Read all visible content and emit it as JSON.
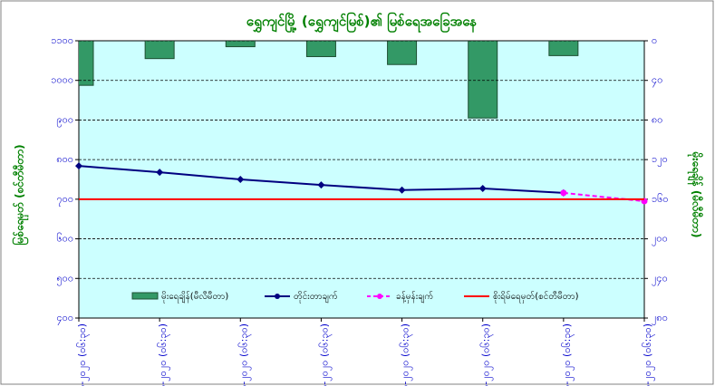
{
  "chart_data": {
    "type": "combo",
    "title": "ရွှေကျင်မြို့ (ရွှေကျင်မြစ်)၏ မြစ်ရေအခြေအနေ",
    "y_label": "မြစ်ရေမှတ် (စင်တီမီတာ)",
    "y2_label": "မိုးရေချိန် (မီလီမီတာ)",
    "categories": [
      "၂၄-၇-၂၀၂၀ (၀၆:၃၀)",
      "၂၅-၇-၂၀၂၀ (၀၆:၃၀)",
      "၂၆-၇-၂၀၂၀ (၀၆:၃၀)",
      "၂၇-၇-၂၀၂၀ (၀၆:၃၀)",
      "၂၈-၇-၂၀၂၀ (၀၆:၃၀)",
      "၂၉-၇-၂၀၂၀ (၀၆:၃၀)",
      "၃၀-၇-၂၀၂၀ (၀၆:၃၀)",
      "၃၁-၇-၂၀၂၀ (၀၆:၃၀)"
    ],
    "ylim": [
      400,
      1100
    ],
    "yticks": [
      {
        "value": 400,
        "label": "၄၀၀"
      },
      {
        "value": 500,
        "label": "၅၀၀"
      },
      {
        "value": 600,
        "label": "၆၀၀"
      },
      {
        "value": 700,
        "label": "၇၀၀"
      },
      {
        "value": 800,
        "label": "၈၀၀"
      },
      {
        "value": 900,
        "label": "၉၀၀"
      },
      {
        "value": 1000,
        "label": "၁၀၀၀"
      },
      {
        "value": 1100,
        "label": "၁၁၀၀"
      }
    ],
    "y2lim": [
      0,
      280
    ],
    "y2_inverted": true,
    "y2ticks": [
      {
        "value": 0,
        "label": "၀"
      },
      {
        "value": 40,
        "label": "၄၀"
      },
      {
        "value": 80,
        "label": "၈၀"
      },
      {
        "value": 120,
        "label": "၁၂၀"
      },
      {
        "value": 160,
        "label": "၁၆၀"
      },
      {
        "value": 200,
        "label": "၂၀၀"
      },
      {
        "value": 240,
        "label": "၂၄၀"
      },
      {
        "value": 280,
        "label": "၂၈၀"
      }
    ],
    "grid": true,
    "series": [
      {
        "name": "မိုးရေချိန်(မီလီမီတာ)",
        "type": "bar",
        "axis": "y2",
        "color": "#339966",
        "values": [
          45,
          18,
          6,
          16,
          24,
          78,
          15,
          null
        ]
      },
      {
        "name": "တိုင်းတာချက်",
        "type": "line",
        "color": "#000080",
        "values": [
          784,
          768,
          750,
          736,
          723,
          727,
          716,
          null
        ]
      },
      {
        "name": "ခန့်မှန်းချက်",
        "type": "dashed",
        "color": "#ff00ff",
        "values": [
          null,
          null,
          null,
          null,
          null,
          null,
          716,
          695
        ]
      }
    ],
    "warning_level": {
      "name": "စိုးရိမ်ရေမှတ်(စင်တီမီတာ)",
      "color": "#ff0000",
      "value": 700
    }
  }
}
